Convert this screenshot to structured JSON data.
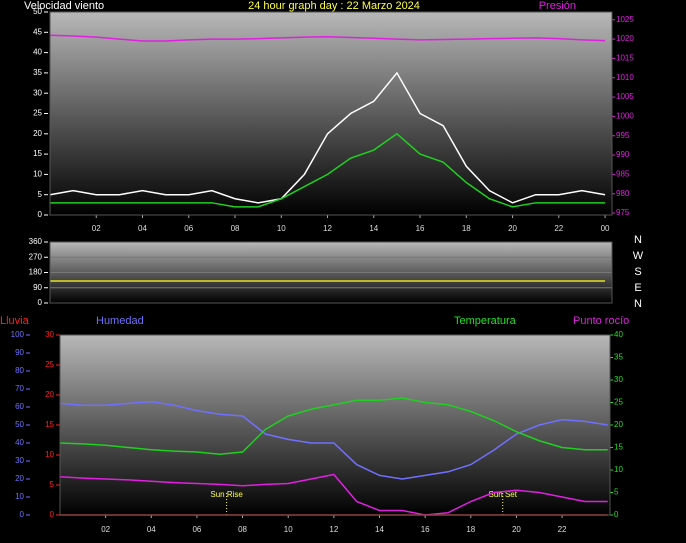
{
  "chart_data": [
    {
      "type": "line",
      "title": "24 hour graph day : 22 Marzo 2024",
      "title_color": "#ffff40",
      "labels": [
        {
          "text": "Velocidad viento",
          "color": "#ffffff"
        },
        {
          "text": "Presión",
          "color": "#e020e0"
        }
      ],
      "x": [
        0,
        1,
        2,
        3,
        4,
        5,
        6,
        7,
        8,
        9,
        10,
        11,
        12,
        13,
        14,
        15,
        16,
        17,
        18,
        19,
        20,
        21,
        22,
        23,
        24
      ],
      "xlim": [
        0,
        24.3
      ],
      "xticks": [
        {
          "value": 2,
          "label": "02"
        },
        {
          "value": 4,
          "label": "04"
        },
        {
          "value": 6,
          "label": "06"
        },
        {
          "value": 8,
          "label": "08"
        },
        10,
        12,
        14,
        16,
        18,
        20,
        22,
        {
          "value": 24,
          "label": "00"
        }
      ],
      "ylim": [
        0,
        50
      ],
      "yticks": [
        0,
        5,
        10,
        15,
        20,
        25,
        30,
        35,
        40,
        45,
        50
      ],
      "y2lim": [
        974.5,
        1027
      ],
      "y2ticks": [
        975,
        980,
        985,
        990,
        995,
        1000,
        1005,
        1010,
        1015,
        1020,
        1025
      ],
      "axis_colors": {
        "y": "#ffffff",
        "y2": "#e020e0"
      },
      "series": [
        {
          "color": "#ffffff",
          "values": [
            5,
            6,
            5,
            5,
            6,
            5,
            5,
            6,
            4,
            3,
            4,
            10,
            20,
            25,
            28,
            35,
            25,
            22,
            12,
            6,
            3,
            5,
            5,
            6,
            5
          ]
        },
        {
          "color": "#20d020",
          "values": [
            3,
            3,
            3,
            3,
            3,
            3,
            3,
            3,
            2,
            2,
            4,
            7,
            10,
            14,
            16,
            20,
            15,
            13,
            8,
            4,
            2,
            3,
            3,
            3,
            3
          ]
        },
        {
          "color": "#e020e0",
          "axis": "y2",
          "values": [
            1021,
            1020.8,
            1020.5,
            1020,
            1019.5,
            1019.5,
            1019.8,
            1020,
            1020,
            1020.1,
            1020.3,
            1020.5,
            1020.6,
            1020.4,
            1020.2,
            1020,
            1019.8,
            1019.9,
            1020,
            1020.1,
            1020.2,
            1020.3,
            1020.1,
            1019.8,
            1019.6
          ]
        }
      ]
    },
    {
      "type": "line",
      "x": [
        0,
        1,
        2,
        3,
        4,
        5,
        6,
        7,
        8,
        9,
        10,
        11,
        12,
        13,
        14,
        15,
        16,
        17,
        18,
        19,
        20,
        21,
        22,
        23,
        24
      ],
      "xlim": [
        0,
        24.3
      ],
      "ylim": [
        0,
        360
      ],
      "yticks": [
        0,
        90,
        180,
        270,
        360
      ],
      "grid": true,
      "axis_colors": {
        "y": "#ffffff"
      },
      "compass": [
        "N",
        "W",
        "S",
        "E",
        "N"
      ],
      "series": [
        {
          "color": "#e0e020",
          "values": [
            130,
            130,
            130,
            130,
            130,
            130,
            130,
            130,
            130,
            130,
            130,
            130,
            130,
            130,
            130,
            130,
            130,
            130,
            130,
            130,
            130,
            130,
            130,
            130,
            130
          ]
        }
      ]
    },
    {
      "type": "line",
      "labels": [
        {
          "text": "Lluvia",
          "color": "#ff2020"
        },
        {
          "text": "Humedad",
          "color": "#7070ff"
        },
        {
          "text": "Temperatura",
          "color": "#20e020"
        },
        {
          "text": "Punto rocío",
          "color": "#e020e0"
        }
      ],
      "x": [
        0,
        1,
        2,
        3,
        4,
        5,
        6,
        7,
        8,
        9,
        10,
        11,
        12,
        13,
        14,
        15,
        16,
        17,
        18,
        19,
        20,
        21,
        22,
        23,
        24
      ],
      "xlim": [
        0,
        24.1
      ],
      "xticks": [
        {
          "value": 2,
          "label": "02"
        },
        {
          "value": 4,
          "label": "04"
        },
        {
          "value": 6,
          "label": "06"
        },
        {
          "value": 8,
          "label": "08"
        },
        10,
        12,
        14,
        16,
        18,
        20,
        22
      ],
      "ylim": [
        0,
        100
      ],
      "yticks": [
        0,
        10,
        20,
        30,
        40,
        50,
        60,
        70,
        80,
        90,
        100
      ],
      "y3lim": [
        0,
        30
      ],
      "y3ticks": [
        0,
        5,
        10,
        15,
        20,
        25,
        30
      ],
      "y2lim": [
        0,
        40
      ],
      "y2ticks": [
        0,
        5,
        10,
        15,
        20,
        25,
        30,
        35,
        40
      ],
      "axis_colors": {
        "y": "#7070ff",
        "y3": "#ff2020",
        "y2": "#20e020"
      },
      "annotations": [
        {
          "text": "Sun Rise",
          "x": 7.3
        },
        {
          "text": "Sun Set",
          "x": 19.4
        }
      ],
      "series": [
        {
          "color": "#7070ff",
          "values": [
            62,
            61,
            61,
            62,
            63,
            61,
            58,
            56,
            55,
            45,
            42,
            40,
            40,
            28,
            22,
            20,
            22,
            24,
            28,
            36,
            45,
            50,
            53,
            52,
            50
          ]
        },
        {
          "color": "#20d020",
          "axis": "y2",
          "values": [
            16,
            15.8,
            15.5,
            15,
            14.5,
            14.2,
            14,
            13.5,
            14,
            19,
            22,
            23.5,
            24.5,
            25.5,
            25.5,
            26,
            25,
            24.5,
            23,
            21,
            18.5,
            16.5,
            15,
            14.5,
            14.5
          ]
        },
        {
          "color": "#e020e0",
          "axis": "y2",
          "values": [
            8.5,
            8.2,
            8,
            7.8,
            7.5,
            7.2,
            7,
            6.8,
            6.5,
            6.8,
            7,
            8,
            9,
            3,
            1,
            1,
            0,
            0.5,
            3,
            5,
            5.5,
            5,
            4,
            3,
            3
          ]
        },
        {
          "color": "#ff2020",
          "axis": "y3",
          "values": [
            0,
            0,
            0,
            0,
            0,
            0,
            0,
            0,
            0,
            0,
            0,
            0,
            0,
            0,
            0,
            0,
            0,
            0,
            0,
            0,
            0,
            0,
            0,
            0,
            0
          ]
        }
      ]
    }
  ]
}
